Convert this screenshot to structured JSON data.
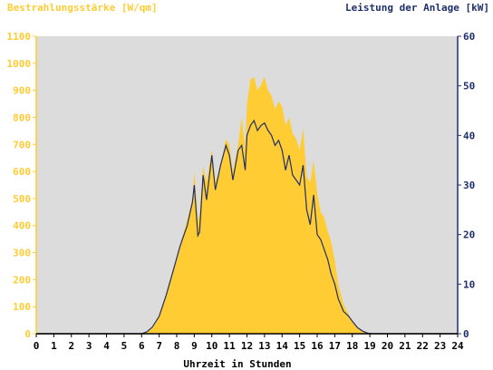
{
  "chart_data": {
    "type": "area",
    "title_left": "Bestrahlungsstärke [W/qm]",
    "title_right": "Leistung der Anlage [kW]",
    "xlabel": "Uhrzeit in Stunden",
    "x_ticks": [
      "0",
      "1",
      "2",
      "3",
      "4",
      "5",
      "6",
      "7",
      "8",
      "9",
      "10",
      "11",
      "12",
      "13",
      "14",
      "15",
      "16",
      "17",
      "18",
      "19",
      "20",
      "21",
      "22",
      "23",
      "24"
    ],
    "y_left_ticks": [
      "0",
      "100",
      "200",
      "300",
      "400",
      "500",
      "600",
      "700",
      "800",
      "900",
      "1000",
      "1100"
    ],
    "y_right_ticks": [
      "0",
      "10",
      "20",
      "30",
      "40",
      "50",
      "60"
    ],
    "y_left_lim": [
      0,
      1100
    ],
    "y_right_lim": [
      0,
      60
    ],
    "x_lim": [
      0,
      24
    ],
    "grid": false,
    "colors": {
      "plot_bg": "#dcdcdc",
      "irradiance_fill": "#ffcc33",
      "power_line": "#1f2f6b",
      "left_axis_text": "#ffcc33",
      "right_axis_text": "#1f2f6b",
      "axis_text": "#000000"
    },
    "series": [
      {
        "axis": "left",
        "x": [
          0,
          6.0,
          6.3,
          6.6,
          7.0,
          7.4,
          7.8,
          8.2,
          8.6,
          8.9,
          9.0,
          9.2,
          9.3,
          9.5,
          9.7,
          10.0,
          10.2,
          10.5,
          10.8,
          11.0,
          11.2,
          11.5,
          11.7,
          11.9,
          12.0,
          12.2,
          12.4,
          12.6,
          12.8,
          13.0,
          13.2,
          13.4,
          13.6,
          13.8,
          14.0,
          14.2,
          14.4,
          14.6,
          14.8,
          15.0,
          15.2,
          15.4,
          15.6,
          15.8,
          16.0,
          16.2,
          16.4,
          16.6,
          16.8,
          17.0,
          17.2,
          17.5,
          17.8,
          18.0,
          18.3,
          18.6,
          18.9,
          19.1,
          24
        ],
        "values": [
          0,
          0,
          8,
          25,
          70,
          150,
          240,
          330,
          420,
          500,
          600,
          420,
          440,
          620,
          560,
          680,
          560,
          620,
          720,
          700,
          600,
          700,
          800,
          680,
          850,
          940,
          950,
          900,
          920,
          950,
          900,
          880,
          830,
          860,
          840,
          770,
          800,
          740,
          720,
          680,
          760,
          580,
          560,
          640,
          520,
          450,
          430,
          380,
          340,
          270,
          180,
          110,
          70,
          45,
          25,
          10,
          2,
          0,
          0
        ]
      },
      {
        "axis": "right",
        "x": [
          0,
          6.0,
          6.3,
          6.6,
          7.0,
          7.4,
          7.8,
          8.2,
          8.6,
          8.9,
          9.0,
          9.2,
          9.3,
          9.5,
          9.7,
          10.0,
          10.2,
          10.5,
          10.8,
          11.0,
          11.2,
          11.5,
          11.7,
          11.9,
          12.0,
          12.2,
          12.4,
          12.6,
          12.8,
          13.0,
          13.2,
          13.4,
          13.6,
          13.8,
          14.0,
          14.2,
          14.4,
          14.6,
          14.8,
          15.0,
          15.2,
          15.4,
          15.6,
          15.8,
          16.0,
          16.2,
          16.4,
          16.6,
          16.8,
          17.0,
          17.2,
          17.5,
          17.8,
          18.0,
          18.3,
          18.6,
          18.9,
          19.1,
          24
        ],
        "values": [
          0,
          0,
          0.4,
          1.3,
          3.5,
          7.8,
          12.7,
          17.8,
          21.8,
          26.6,
          30,
          19.8,
          20.5,
          32,
          27,
          36,
          29,
          34,
          38,
          36,
          31,
          37,
          38,
          33,
          40,
          42,
          43,
          41,
          42,
          42.5,
          41,
          40,
          38,
          39,
          37,
          33,
          36,
          32,
          31,
          30,
          34,
          25,
          22,
          28,
          20,
          19,
          17,
          15,
          12,
          10,
          7,
          4.5,
          3.5,
          2.5,
          1.2,
          0.5,
          0.1,
          0,
          0
        ]
      }
    ]
  }
}
